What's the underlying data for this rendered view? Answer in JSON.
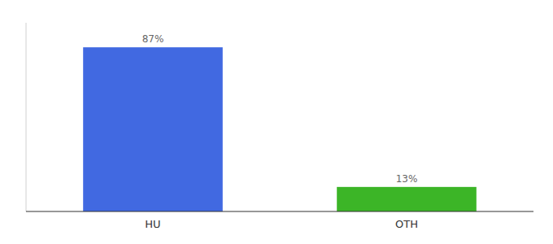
{
  "chart_data": {
    "type": "bar",
    "categories": [
      "HU",
      "OTH"
    ],
    "values": [
      87,
      13
    ],
    "colors": [
      "#4169e1",
      "#3cb527"
    ],
    "value_labels": [
      "87%",
      "13%"
    ],
    "data_labels": true,
    "ylim": [
      0,
      100
    ],
    "tick_labels": "x"
  }
}
